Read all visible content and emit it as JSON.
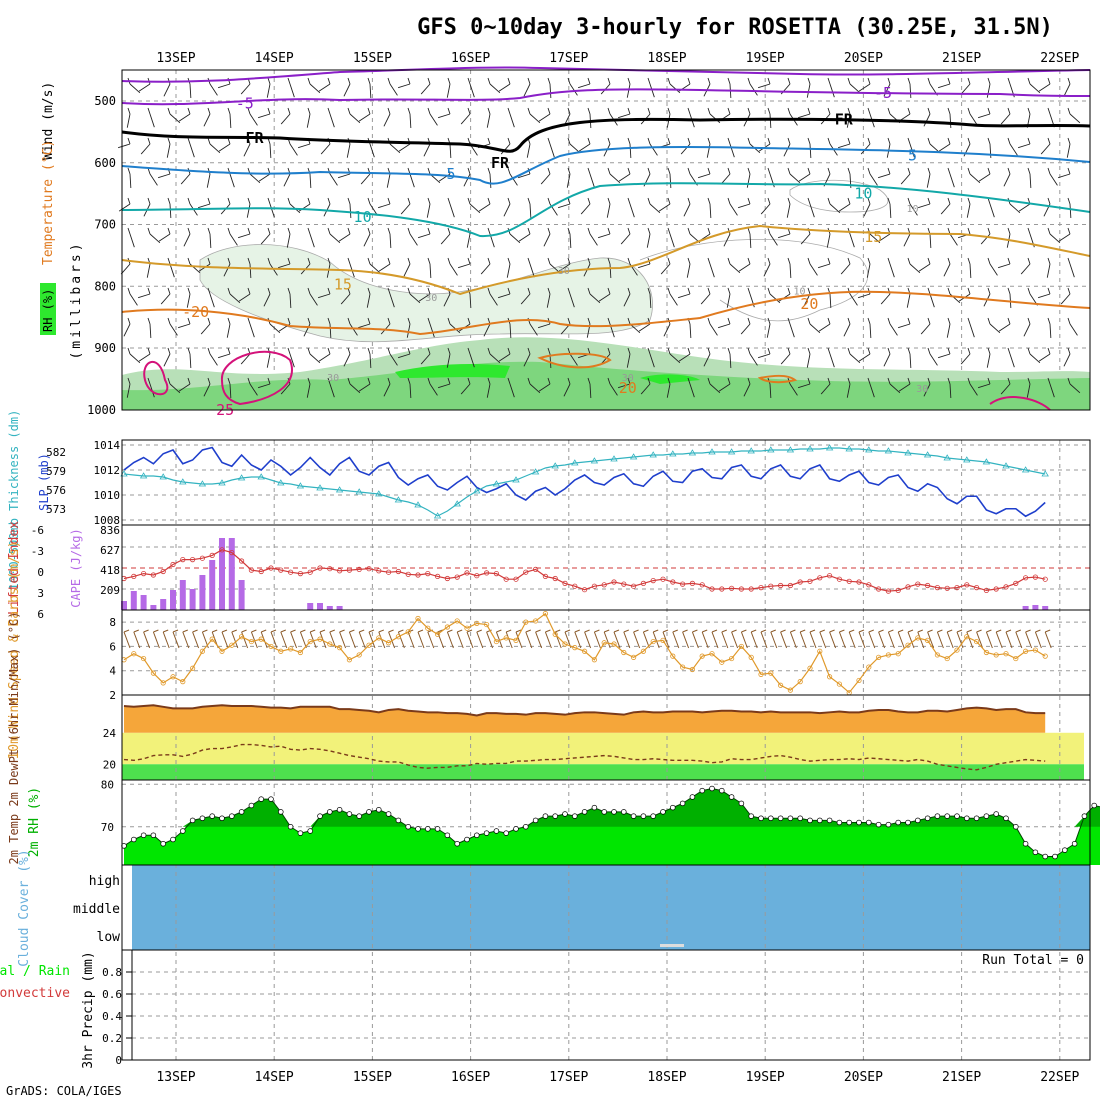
{
  "title": "GFS 0~10day 3-hourly for ROSETTA (30.25E, 31.5N)",
  "footer": "GrADS: COLA/IGES",
  "colors": {
    "purple": "#8a1fc8",
    "blue": "#1f7fcc",
    "teal": "#12a8a8",
    "ochre": "#d49a2a",
    "orange": "#e07a1f",
    "magenta": "#d4127a",
    "slp": "#1f3fcc",
    "thick": "#33b3c0",
    "lifted": "#d23a3a",
    "cape": "#b56ae6",
    "wind": "#e0992a",
    "barb": "#8a5a2a",
    "tempfill": "#f5a63a",
    "yellow": "#f2f27a",
    "green": "#4ee04e",
    "rh": "#00e600",
    "rhdark": "#00b000",
    "cloud": "#6ab0dc"
  },
  "chart_data": [
    {
      "type": "contour",
      "name": "upper_air",
      "xlabels": [
        "13SEP",
        "14SEP",
        "15SEP",
        "16SEP",
        "17SEP",
        "18SEP",
        "19SEP",
        "20SEP",
        "21SEP",
        "22SEP"
      ],
      "ylabel": "(millibars)",
      "panel_labels": [
        "Wind (m/s)",
        "Temperature (°C)",
        "RH (%)"
      ],
      "yticks": [
        500,
        600,
        700,
        800,
        900,
        1000
      ],
      "ylim": [
        450,
        1000
      ],
      "contour_labels": [
        {
          "text": "-5",
          "day": 0.7,
          "p": 504,
          "c": "purple"
        },
        {
          "text": "-5",
          "day": 7.2,
          "p": 487,
          "c": "purple"
        },
        {
          "text": "FR",
          "day": 0.8,
          "p": 560,
          "c": "black"
        },
        {
          "text": "FR",
          "day": 3.3,
          "p": 600,
          "c": "black"
        },
        {
          "text": "FR",
          "day": 6.8,
          "p": 530,
          "c": "black"
        },
        {
          "text": "5",
          "day": 2.8,
          "p": 618,
          "c": "blue"
        },
        {
          "text": "5",
          "day": 7.5,
          "p": 588,
          "c": "blue"
        },
        {
          "text": "10",
          "day": 1.9,
          "p": 688,
          "c": "teal"
        },
        {
          "text": "10",
          "day": 7.0,
          "p": 650,
          "c": "teal"
        },
        {
          "text": "15",
          "day": 1.7,
          "p": 797,
          "c": "ochre"
        },
        {
          "text": "15",
          "day": 7.1,
          "p": 720,
          "c": "ochre"
        },
        {
          "text": "-20",
          "day": 0.2,
          "p": 842,
          "c": "orange"
        },
        {
          "text": "20",
          "day": 6.45,
          "p": 829,
          "c": "orange"
        },
        {
          "text": "20",
          "day": 4.6,
          "p": 965,
          "c": "orange"
        },
        {
          "text": "25",
          "day": 0.5,
          "p": 1000,
          "c": "magenta"
        },
        {
          "text": "30",
          "day": 3.95,
          "p": 772,
          "c": "gray"
        },
        {
          "text": "30",
          "day": 2.6,
          "p": 816,
          "c": "gray"
        },
        {
          "text": "30",
          "day": 4.6,
          "p": 945,
          "c": "gray"
        },
        {
          "text": "30",
          "day": 7.6,
          "p": 963,
          "c": "gray"
        },
        {
          "text": "10",
          "day": 6.35,
          "p": 805,
          "c": "gray"
        },
        {
          "text": "10",
          "day": 7.5,
          "p": 672,
          "c": "gray"
        },
        {
          "text": "30",
          "day": 1.6,
          "p": 945,
          "c": "gray"
        }
      ]
    },
    {
      "type": "line",
      "name": "slp_thickness",
      "ylabel_left": "1000-500mb Thickness (dm)",
      "ylabel_right": "SLP (mb)",
      "left_ticks": [
        582,
        579,
        576,
        573
      ],
      "right_ticks": [
        1014,
        1012,
        1010,
        1008
      ],
      "slp_ylim": [
        1007.6,
        1014.4
      ],
      "slp": [
        1012.0,
        1012.6,
        1013.0,
        1012.5,
        1013.3,
        1013.6,
        1012.5,
        1012.8,
        1013.6,
        1013.8,
        1012.6,
        1012.3,
        1013.2,
        1012.4,
        1012.0,
        1012.8,
        1012.3,
        1011.6,
        1012.2,
        1013.0,
        1012.2,
        1011.6,
        1012.5,
        1013.0,
        1011.9,
        1011.6,
        1012.3,
        1012.6,
        1011.4,
        1010.8,
        1011.3,
        1011.6,
        1010.7,
        1010.4,
        1011.0,
        1011.5,
        1010.6,
        1010.2,
        1010.5,
        1010.9,
        1010.0,
        1009.6,
        1010.3,
        1010.6,
        1010.0,
        1010.5,
        1011.2,
        1011.6,
        1011.0,
        1010.8,
        1011.4,
        1011.7,
        1010.9,
        1010.7,
        1011.5,
        1011.9,
        1011.1,
        1011.0,
        1011.9,
        1012.1,
        1011.4,
        1011.3,
        1012.2,
        1012.4,
        1011.5,
        1011.3,
        1012.1,
        1012.4,
        1011.5,
        1011.3,
        1012.1,
        1012.4,
        1011.3,
        1011.1,
        1011.6,
        1011.9,
        1011.0,
        1010.8,
        1011.4,
        1011.6,
        1010.6,
        1010.3,
        1010.9,
        1010.6,
        1009.7,
        1009.3,
        1009.9,
        1009.9,
        1008.8,
        1008.5,
        1008.9,
        1008.9,
        1008.3,
        1008.7,
        1009.4
      ]
    },
    {
      "type": "bar",
      "name": "cape_lifted",
      "ylabel_left": "Lifted Index",
      "ylabel_right": "CAPE (J/kg)",
      "li_ticks": [
        "-6",
        "-3",
        "0",
        "3",
        "6"
      ],
      "cape_ticks": [
        "836",
        "627",
        "418",
        "209"
      ],
      "cape": [
        90,
        190,
        150,
        50,
        110,
        200,
        300,
        210,
        350,
        500,
        720,
        720,
        300,
        0,
        0,
        0,
        0,
        0,
        0,
        70,
        70,
        40,
        40,
        0,
        0,
        0,
        0,
        0,
        0,
        0,
        0,
        0,
        0,
        0,
        0,
        0,
        0,
        0,
        0,
        0,
        0,
        0,
        0,
        0,
        0,
        0,
        0,
        0,
        0,
        0,
        0,
        0,
        0,
        0,
        0,
        0,
        0,
        0,
        0,
        0,
        0,
        0,
        0,
        0,
        0,
        0,
        0,
        0,
        0,
        0,
        0,
        0,
        0,
        0,
        0,
        0,
        0,
        0,
        0,
        0,
        0,
        0,
        0,
        0,
        0,
        0,
        0,
        0,
        0,
        0,
        0,
        0,
        40,
        50,
        40
      ],
      "lifted": [
        1.5,
        1.2,
        0.8,
        1.0,
        0.5,
        -0.5,
        -1.2,
        -1.2,
        -1.4,
        -1.8,
        -2.6,
        -2.2,
        -1.0,
        0.3,
        0.5,
        0.0,
        0.3,
        0.6,
        0.8,
        0.6,
        0.0,
        0.1,
        0.4,
        0.3,
        0.2,
        0.1,
        0.4,
        0.6,
        0.5,
        0.9,
        1.0,
        0.8,
        1.2,
        1.5,
        1.3,
        0.7,
        1.1,
        0.7,
        0.8,
        1.6,
        1.6,
        0.6,
        0.2,
        1.2,
        1.5,
        2.2,
        2.6,
        3.1,
        2.6,
        2.4,
        2.0,
        2.3,
        2.6,
        2.2,
        1.8,
        1.6,
        2.0,
        2.3,
        2.2,
        2.4,
        3.0,
        3.0,
        2.9,
        3.0,
        3.0,
        2.8,
        2.6,
        2.5,
        2.5,
        2.0,
        1.9,
        1.4,
        1.1,
        1.6,
        1.9,
        2.0,
        2.4,
        3.0,
        3.3,
        3.2,
        2.7,
        2.3,
        2.5,
        2.8,
        2.9,
        2.8,
        2.4,
        2.8,
        3.2,
        3.0,
        2.7,
        2.2,
        1.4,
        1.3,
        1.6
      ]
    },
    {
      "type": "line",
      "name": "wind10m",
      "ylabel": "10m Wind Speed & Barbs (m/s)",
      "yticks": [
        8,
        6,
        4,
        2
      ],
      "ylim": [
        2,
        9
      ],
      "speed": [
        4.9,
        5.4,
        5.0,
        3.8,
        3.0,
        3.5,
        3.1,
        4.2,
        5.6,
        6.6,
        5.6,
        6.1,
        6.8,
        6.4,
        6.6,
        6.0,
        5.6,
        5.8,
        5.5,
        6.4,
        6.6,
        6.2,
        5.9,
        4.9,
        5.3,
        6.1,
        6.7,
        6.3,
        6.8,
        7.2,
        8.3,
        7.5,
        7.0,
        7.6,
        8.1,
        7.5,
        7.9,
        7.8,
        6.4,
        6.7,
        6.5,
        8.0,
        8.1,
        8.7,
        7.0,
        6.2,
        5.9,
        5.6,
        4.9,
        6.3,
        6.2,
        5.5,
        5.1,
        5.6,
        6.4,
        6.5,
        5.2,
        4.3,
        4.1,
        5.2,
        5.4,
        4.7,
        5.0,
        6.0,
        5.1,
        3.7,
        3.8,
        2.8,
        2.4,
        3.1,
        4.2,
        5.6,
        3.5,
        2.9,
        2.2,
        3.2,
        4.3,
        5.1,
        5.3,
        5.4,
        6.1,
        6.7,
        6.5,
        5.3,
        5.0,
        5.7,
        6.8,
        6.4,
        5.5,
        5.3,
        5.4,
        5.0,
        5.6,
        5.7,
        5.2
      ]
    },
    {
      "type": "area",
      "name": "temp2m",
      "ylabel": "2m Temp 2m DewPt (6hr Min/Max) (°C)",
      "yticks": [
        24,
        20
      ],
      "ylim": [
        18.0,
        28.8
      ],
      "temp": [
        27.4,
        27.3,
        27.4,
        27.5,
        27.3,
        27.1,
        27.1,
        27.1,
        27.3,
        27.4,
        27.5,
        27.4,
        27.4,
        27.4,
        27.3,
        27.2,
        27.2,
        27.1,
        27.3,
        27.3,
        27.3,
        27.3,
        27.0,
        27.0,
        26.9,
        26.8,
        26.6,
        26.9,
        27.0,
        26.8,
        26.7,
        26.6,
        26.6,
        26.5,
        26.5,
        26.4,
        26.2,
        26.5,
        26.5,
        26.4,
        26.4,
        26.3,
        26.5,
        26.5,
        26.4,
        26.3,
        26.5,
        26.6,
        26.6,
        26.5,
        26.4,
        26.3,
        26.6,
        26.7,
        26.6,
        26.6,
        26.7,
        26.7,
        26.7,
        26.6,
        26.7,
        26.8,
        26.8,
        26.7,
        26.7,
        26.6,
        26.7,
        26.6,
        26.6,
        26.6,
        26.6,
        26.5,
        26.6,
        26.7,
        26.6,
        26.6,
        26.8,
        26.9,
        26.9,
        26.7,
        26.6,
        26.6,
        26.8,
        26.8,
        26.7,
        26.9,
        27.1,
        27.2,
        27.1,
        26.9,
        27.0,
        27.0,
        26.6,
        26.5,
        26.5
      ],
      "dewpt": [
        20.6,
        20.5,
        20.7,
        21.1,
        21.2,
        21.2,
        21.0,
        21.3,
        21.8,
        22.0,
        22.0,
        22.2,
        22.5,
        22.5,
        22.4,
        22.2,
        22.3,
        21.9,
        21.8,
        22.0,
        21.9,
        21.7,
        21.4,
        21.1,
        20.9,
        20.7,
        20.4,
        20.3,
        20.3,
        19.9,
        19.6,
        19.5,
        19.6,
        19.6,
        19.8,
        19.8,
        20.1,
        20.0,
        20.1,
        20.1,
        20.4,
        20.4,
        20.5,
        20.6,
        20.6,
        20.7,
        20.8,
        20.9,
        21.0,
        21.1,
        21.0,
        20.8,
        20.6,
        20.6,
        20.7,
        20.6,
        20.5,
        20.5,
        20.5,
        20.4,
        20.2,
        20.3,
        20.7,
        20.6,
        20.6,
        20.8,
        21.0,
        21.1,
        20.9,
        20.6,
        20.4,
        20.5,
        20.6,
        20.6,
        20.7,
        20.6,
        20.8,
        20.7,
        20.6,
        20.5,
        20.4,
        20.6,
        20.4,
        20.0,
        19.8,
        19.6,
        19.4,
        19.3,
        19.6,
        20.0,
        20.2,
        20.4,
        20.6,
        20.5,
        20.4
      ]
    },
    {
      "type": "area",
      "name": "rh2m",
      "ylabel": "2m RH (%)",
      "yticks": [
        80,
        70
      ],
      "ylim": [
        61,
        81
      ],
      "rh": [
        65.5,
        67,
        68,
        68,
        66,
        67,
        69,
        71.5,
        72,
        72.5,
        72,
        72.5,
        73.5,
        75,
        76.5,
        76.5,
        73.5,
        70,
        68.5,
        69,
        72.5,
        73.5,
        74,
        73,
        72.5,
        73.5,
        74,
        73,
        71.5,
        70,
        69.5,
        69.5,
        69.5,
        68,
        66,
        67,
        68,
        68.5,
        69,
        68.5,
        69.5,
        70,
        71.5,
        72.5,
        72.5,
        73,
        72.5,
        73.5,
        74.5,
        73.5,
        73.5,
        73.5,
        72.5,
        72.5,
        72.5,
        73.5,
        74.5,
        75.5,
        77,
        78.5,
        79,
        78.5,
        77,
        75.5,
        72.5,
        72,
        72,
        72,
        72,
        72,
        71.5,
        71.5,
        71.5,
        71,
        71,
        71,
        71,
        70.5,
        70.5,
        71,
        71,
        71.5,
        72,
        72.5,
        72.5,
        72.5,
        72,
        72,
        72.5,
        73,
        72,
        70,
        66,
        64,
        63,
        63,
        64.5,
        66,
        72.5,
        75,
        74.5
      ]
    },
    {
      "type": "area",
      "name": "cloud",
      "ylabel": "Cloud Cover (%)",
      "levels": [
        "high",
        "middle",
        "low"
      ]
    },
    {
      "type": "bar",
      "name": "precip",
      "ylabel_left": "Total / Rain",
      "ylabel_right": "Convective",
      "ylabel": "3hr Precip (mm)",
      "yticks": [
        "0.8",
        "0.6",
        "0.4",
        "0.2",
        "0"
      ],
      "run_total": "Run Total = 0",
      "values": []
    }
  ]
}
